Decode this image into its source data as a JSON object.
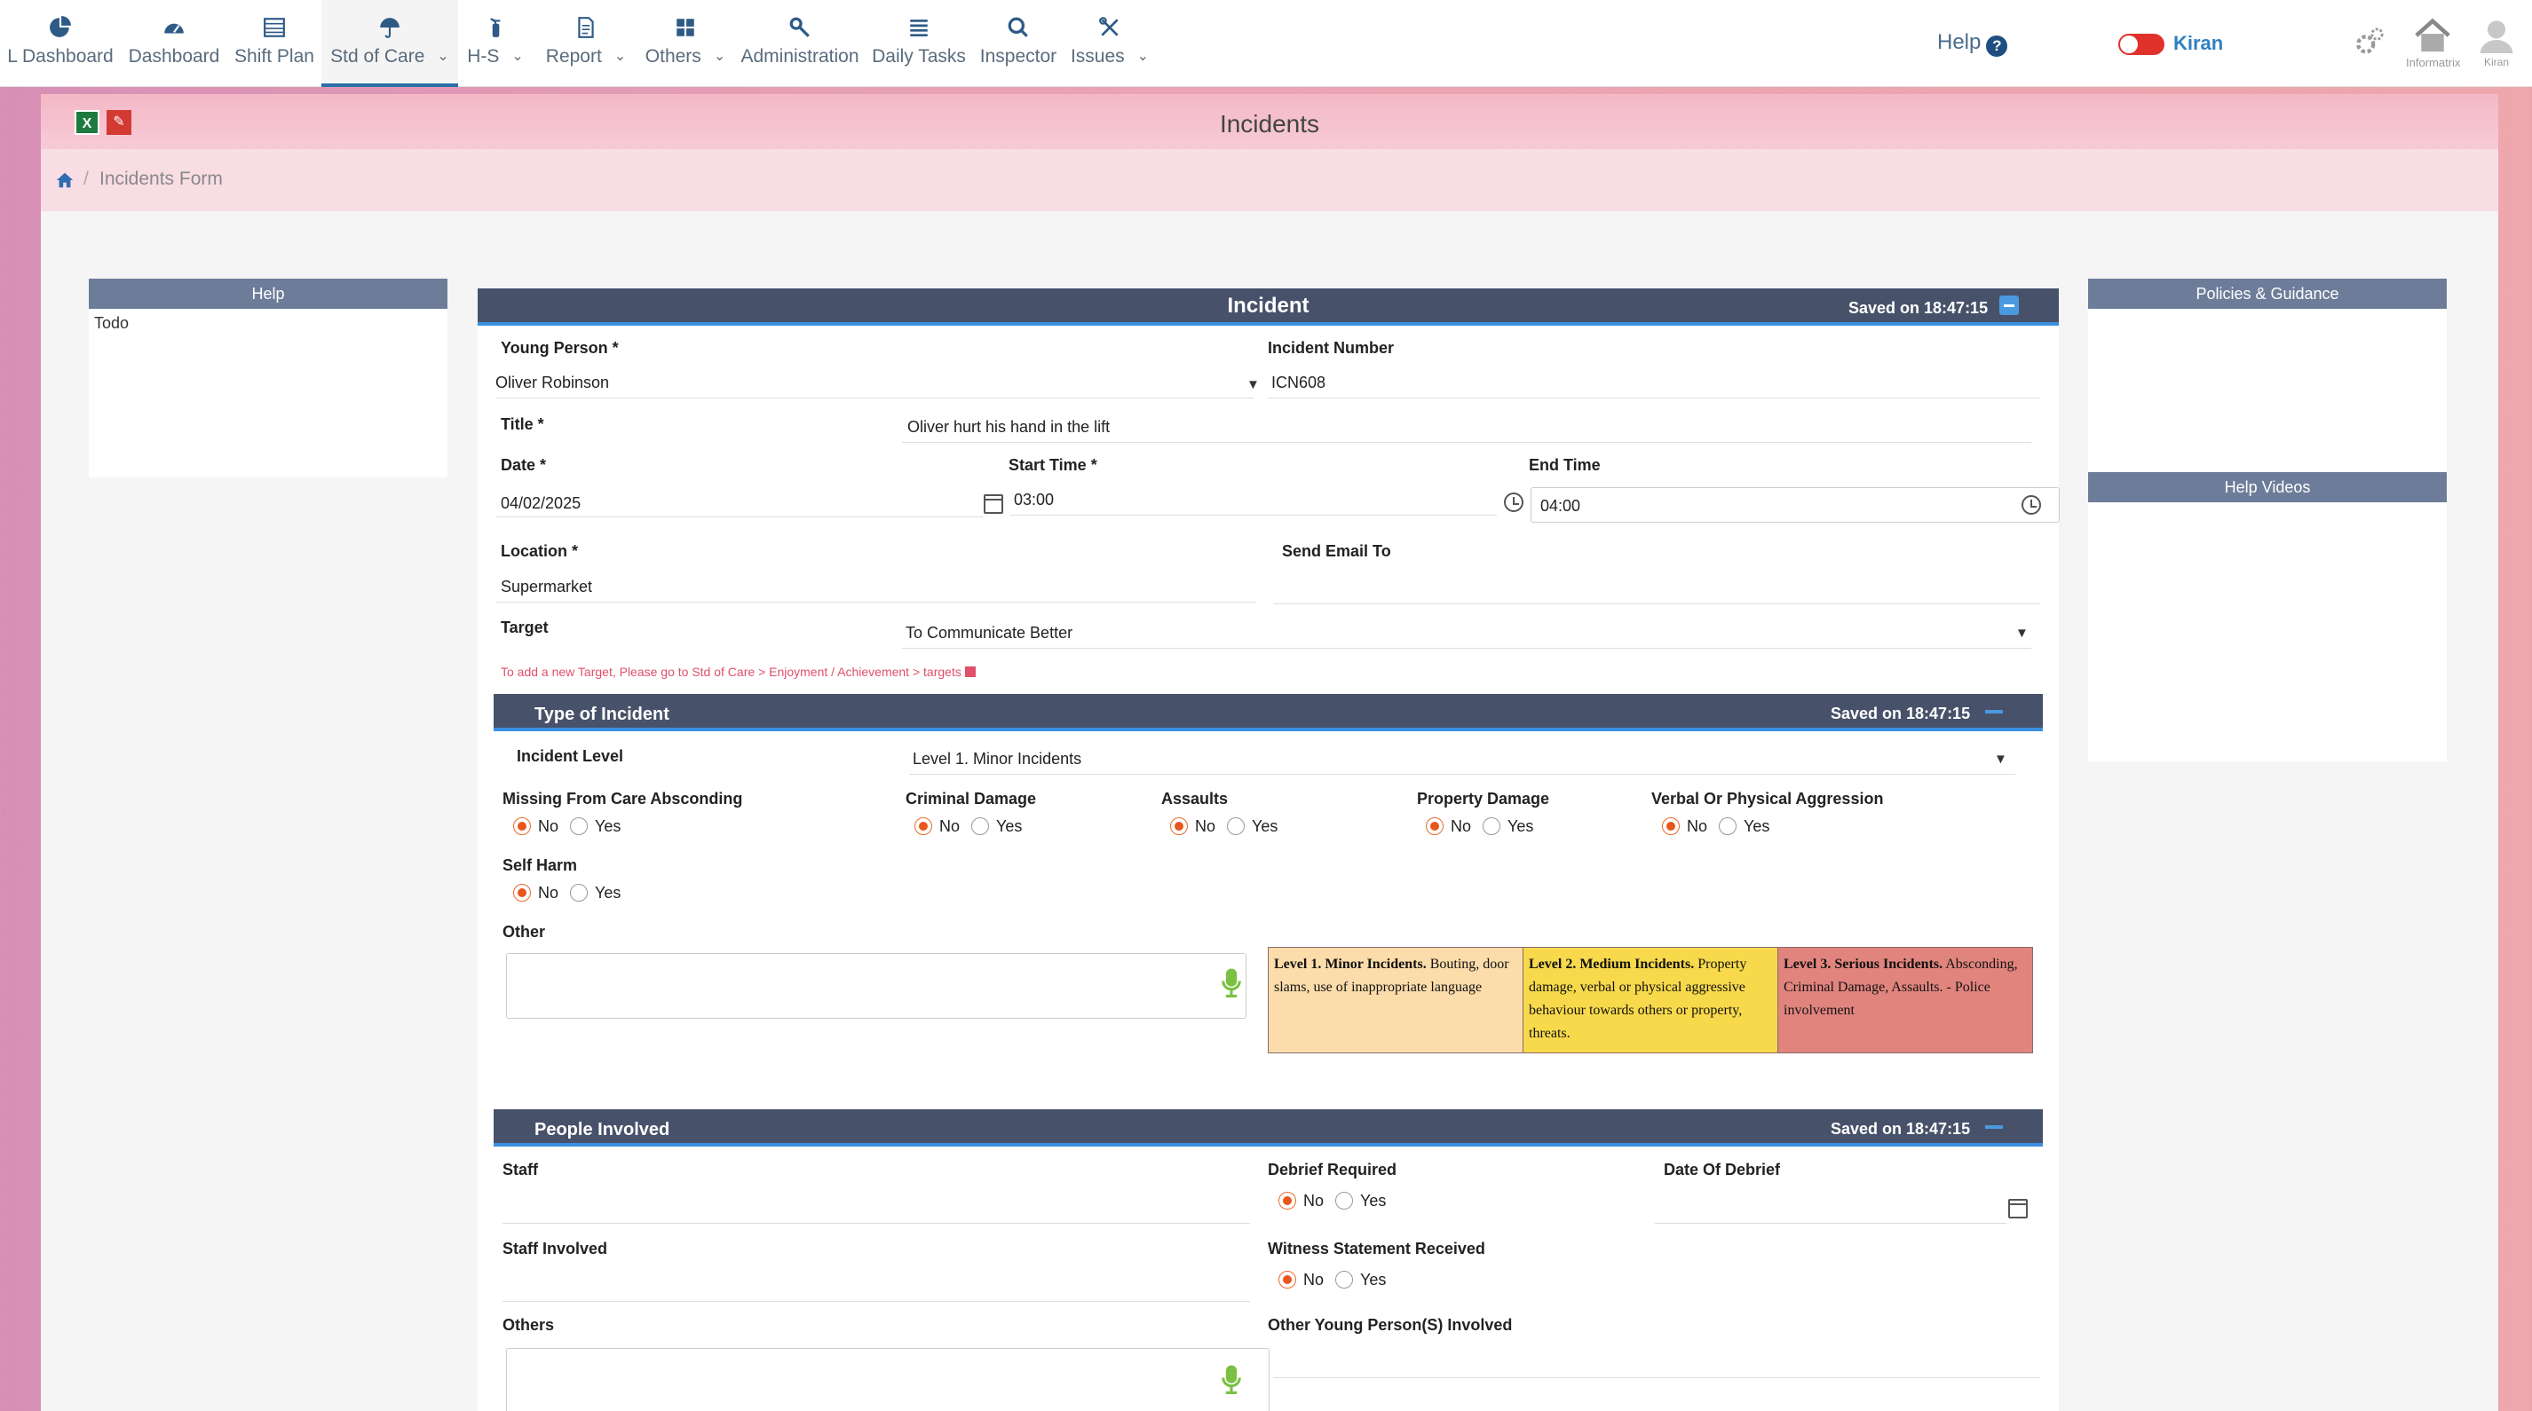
{
  "nav": {
    "items": [
      {
        "label": "L Dashboard",
        "icon": "pie-chart-icon"
      },
      {
        "label": "Dashboard",
        "icon": "speedometer-icon"
      },
      {
        "label": "Shift Plan",
        "icon": "calendar-table-icon"
      },
      {
        "label": "Std of Care",
        "icon": "umbrella-icon"
      },
      {
        "label": "H-S",
        "icon": "fire-extinguisher-icon"
      },
      {
        "label": "Report",
        "icon": "document-icon"
      },
      {
        "label": "Others",
        "icon": "grid-icon"
      },
      {
        "label": "Administration",
        "icon": "wrench-icon"
      },
      {
        "label": "Daily Tasks",
        "icon": "list-icon"
      },
      {
        "label": "Inspector",
        "icon": "magnifier-icon"
      },
      {
        "label": "Issues",
        "icon": "tools-icon"
      }
    ],
    "help_label": "Help",
    "user_name": "Kiran",
    "home_label": "Informatrix",
    "avatar_label": "Kiran"
  },
  "page": {
    "title": "Incidents",
    "breadcrumb": "Incidents Form"
  },
  "left_panel": {
    "title": "Help",
    "body": "Todo"
  },
  "right_panel": {
    "policies_title": "Policies & Guidance",
    "videos_title": "Help Videos"
  },
  "incident": {
    "title": "Incident",
    "saved": "Saved on 18:47:15",
    "young_person_label": "Young Person *",
    "young_person_value": "Oliver Robinson",
    "incident_number_label": "Incident Number",
    "incident_number_value": "ICN608",
    "title_label": "Title *",
    "title_value": "Oliver hurt his hand in the lift",
    "date_label": "Date *",
    "date_value": "04/02/2025",
    "start_time_label": "Start Time *",
    "start_time_value": "03:00",
    "end_time_label": "End Time",
    "end_time_value": "04:00",
    "location_label": "Location *",
    "location_value": "Supermarket",
    "send_email_label": "Send Email To",
    "target_label": "Target",
    "target_value": "To Communicate Better",
    "target_note": "To add a new Target, Please go to Std of Care > Enjoyment / Achievement > targets"
  },
  "type_of_incident": {
    "title": "Type of Incident",
    "saved": "Saved on 18:47:15",
    "level_label": "Incident Level",
    "level_value": "Level 1. Minor Incidents",
    "no": "No",
    "yes": "Yes",
    "missing_label": "Missing From Care Absconding",
    "criminal_label": "Criminal Damage",
    "assaults_label": "Assaults",
    "property_label": "Property Damage",
    "verbal_label": "Verbal Or Physical Aggression",
    "selfharm_label": "Self Harm",
    "other_label": "Other",
    "legend": {
      "l1_title": "Level 1. Minor Incidents.",
      "l1_text": "Bouting, door slams, use of inappropriate language",
      "l2_title": "Level 2. Medium Incidents.",
      "l2_text": "Property damage, verbal or physical aggressive behaviour towards others or property, threats.",
      "l3_title": "Level 3. Serious Incidents.",
      "l3_text": "Absconding, Criminal Damage, Assaults. - Police involvement",
      "l1_color": "#fbdcaa",
      "l2_color": "#f7d94b",
      "l3_color": "#e1847e"
    }
  },
  "people": {
    "title": "People Involved",
    "saved": "Saved on 18:47:15",
    "staff_label": "Staff",
    "debrief_label": "Debrief Required",
    "debrief_date_label": "Date Of Debrief",
    "staff_involved_label": "Staff Involved",
    "witness_label": "Witness Statement Received",
    "others_label": "Others",
    "other_yp_label": "Other Young Person(S) Involved",
    "no": "No",
    "yes": "Yes"
  }
}
